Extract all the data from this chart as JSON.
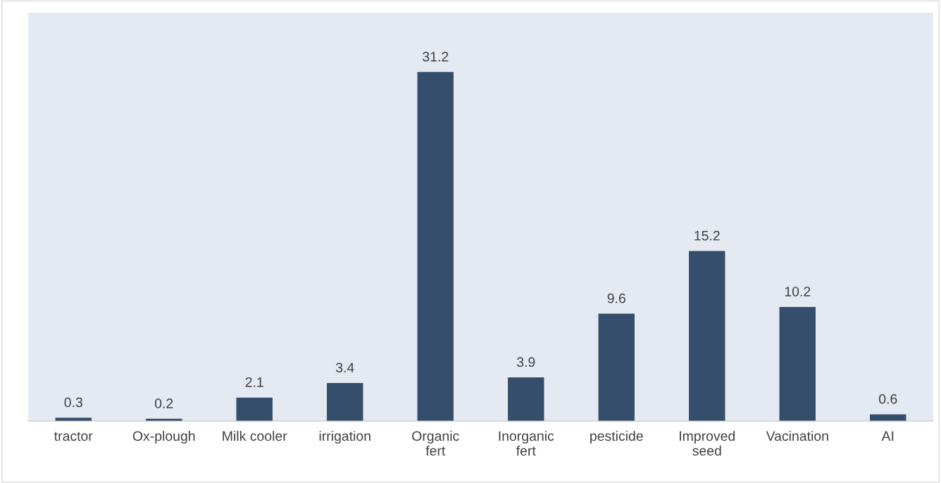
{
  "chart_data": {
    "type": "bar",
    "categories": [
      "tractor",
      "Ox-plough",
      "Milk cooler",
      "irrigation",
      "Organic fert",
      "Inorganic fert",
      "pesticide",
      "Improved seed",
      "Vacination",
      "AI"
    ],
    "values": [
      0.3,
      0.2,
      2.1,
      3.4,
      31.2,
      3.9,
      9.6,
      15.2,
      10.2,
      0.6
    ],
    "color": "#344e6b",
    "data_labels": true,
    "grid": false,
    "legend": false
  }
}
